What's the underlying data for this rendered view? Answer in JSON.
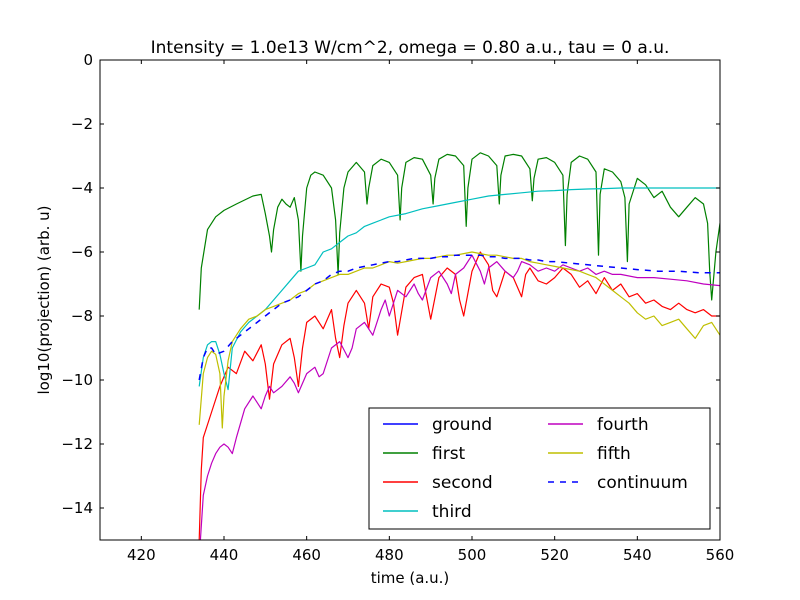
{
  "chart_data": {
    "type": "line",
    "title": "Intensity = 1.0e13 W/cm^2, omega = 0.80 a.u., tau = 0 a.u.",
    "xlabel": "time (a.u.)",
    "ylabel": "log10(projection) (arb. u)",
    "xlim": [
      410,
      560
    ],
    "ylim": [
      -15,
      0
    ],
    "xticks": [
      420,
      440,
      460,
      480,
      500,
      520,
      540,
      560
    ],
    "yticks": [
      0,
      -2,
      -4,
      -6,
      -8,
      -10,
      -12,
      -14
    ],
    "xtick_labels": [
      "420",
      "440",
      "460",
      "480",
      "500",
      "520",
      "540",
      "560"
    ],
    "ytick_labels": [
      "0",
      "−2",
      "−4",
      "−6",
      "−8",
      "−10",
      "−12",
      "−14"
    ],
    "grid": false,
    "legend_position": "lower-right",
    "series": [
      {
        "name": "ground",
        "color": "#0000ff",
        "dash": "solid",
        "x": [],
        "y": []
      },
      {
        "name": "first",
        "color": "#008000",
        "dash": "solid",
        "x": [
          434,
          434.5,
          436,
          438,
          440,
          443,
          447,
          449,
          450,
          451,
          451.5,
          452,
          453,
          454,
          455,
          456,
          457,
          458,
          458.6,
          459,
          460,
          461,
          462,
          464,
          466,
          467,
          467.6,
          468,
          469,
          470,
          472,
          474,
          474.6,
          475,
          476,
          478,
          480,
          482,
          482.6,
          483,
          484,
          486,
          488,
          490,
          490.6,
          491,
          492,
          494,
          496,
          498,
          498.6,
          499,
          500,
          502,
          504,
          506,
          506.6,
          507,
          508,
          510,
          512,
          514,
          514.6,
          515,
          516,
          518,
          520,
          522,
          522.6,
          523,
          524,
          526,
          528,
          530,
          530.6,
          531,
          532,
          534,
          536,
          537,
          537.6,
          538,
          540,
          542,
          544,
          546,
          548,
          550,
          552,
          554,
          556,
          557,
          557.5,
          558,
          559,
          560
        ],
        "y": [
          -7.8,
          -6.5,
          -5.3,
          -4.9,
          -4.7,
          -4.5,
          -4.25,
          -4.2,
          -4.8,
          -5.5,
          -6.0,
          -5.3,
          -4.6,
          -4.35,
          -4.5,
          -4.6,
          -4.3,
          -5.0,
          -6.6,
          -5.5,
          -4.0,
          -3.6,
          -3.5,
          -3.6,
          -4.0,
          -5.0,
          -6.7,
          -5.4,
          -4.0,
          -3.5,
          -3.2,
          -3.5,
          -4.5,
          -4.0,
          -3.3,
          -3.1,
          -3.2,
          -3.6,
          -5.0,
          -4.0,
          -3.2,
          -3.05,
          -3.1,
          -3.6,
          -4.5,
          -3.7,
          -3.1,
          -2.95,
          -3.0,
          -3.3,
          -5.2,
          -4.0,
          -3.1,
          -2.9,
          -3.0,
          -3.3,
          -4.5,
          -3.6,
          -3.0,
          -2.95,
          -3.0,
          -3.4,
          -4.4,
          -3.7,
          -3.1,
          -3.05,
          -3.2,
          -3.6,
          -5.8,
          -4.2,
          -3.2,
          -3.0,
          -3.1,
          -3.5,
          -6.1,
          -4.2,
          -3.4,
          -3.5,
          -3.8,
          -4.3,
          -6.3,
          -4.5,
          -3.7,
          -3.9,
          -4.3,
          -4.1,
          -4.6,
          -4.9,
          -4.6,
          -4.3,
          -4.5,
          -5.1,
          -6.6,
          -7.5,
          -6.0,
          -5.1
        ]
      },
      {
        "name": "second",
        "color": "#ff0000",
        "dash": "solid",
        "x": [
          434,
          434.5,
          435,
          437,
          439,
          441,
          443,
          445,
          447,
          449,
          450,
          451,
          452,
          454,
          456,
          457,
          458,
          459,
          460,
          462,
          464,
          466,
          467,
          468,
          469,
          470,
          472,
          474,
          475,
          476,
          478,
          480,
          481,
          482,
          484,
          486,
          488,
          489,
          490,
          492,
          494,
          496,
          497,
          498,
          500,
          502,
          504,
          505,
          506,
          508,
          510,
          512,
          513,
          514,
          516,
          518,
          520,
          522,
          524,
          526,
          528,
          530,
          532,
          534,
          536,
          538,
          540,
          542,
          544,
          546,
          548,
          550,
          552,
          554,
          556,
          558,
          560
        ],
        "y": [
          -15,
          -12.8,
          -11.8,
          -11.0,
          -10.2,
          -9.6,
          -9.8,
          -9.1,
          -9.4,
          -8.9,
          -9.5,
          -10.6,
          -9.5,
          -8.9,
          -8.7,
          -9.3,
          -10.2,
          -9.0,
          -8.2,
          -8.0,
          -8.4,
          -7.8,
          -8.7,
          -9.3,
          -8.3,
          -7.6,
          -7.2,
          -7.6,
          -8.4,
          -7.4,
          -7.0,
          -7.1,
          -7.6,
          -8.6,
          -7.1,
          -6.8,
          -6.7,
          -7.4,
          -8.1,
          -6.8,
          -6.5,
          -6.7,
          -7.5,
          -8.0,
          -6.6,
          -6.0,
          -6.4,
          -7.2,
          -7.4,
          -6.6,
          -6.8,
          -7.4,
          -6.7,
          -6.5,
          -6.9,
          -7.0,
          -6.8,
          -6.5,
          -6.7,
          -7.1,
          -6.9,
          -7.3,
          -6.8,
          -7.2,
          -7.0,
          -7.4,
          -7.3,
          -7.6,
          -7.5,
          -7.7,
          -7.8,
          -7.6,
          -7.8,
          -7.9,
          -7.8,
          -8.0,
          -8.0
        ]
      },
      {
        "name": "third",
        "color": "#00bfbf",
        "dash": "solid",
        "x": [
          434,
          435,
          436,
          437,
          438,
          439,
          440,
          441,
          442,
          444,
          446,
          448,
          450,
          452,
          454,
          456,
          458,
          460,
          462,
          464,
          466,
          468,
          470,
          472,
          474,
          476,
          478,
          480,
          484,
          488,
          492,
          496,
          500,
          504,
          508,
          512,
          516,
          520,
          524,
          528,
          532,
          536,
          540,
          545,
          550,
          555,
          560
        ],
        "y": [
          -10.2,
          -9.3,
          -8.9,
          -8.8,
          -8.8,
          -9.2,
          -9.8,
          -10.3,
          -9.0,
          -8.5,
          -8.2,
          -8.0,
          -7.8,
          -7.5,
          -7.2,
          -6.9,
          -6.6,
          -6.5,
          -6.4,
          -6.0,
          -5.9,
          -5.7,
          -5.5,
          -5.4,
          -5.2,
          -5.1,
          -5.0,
          -4.9,
          -4.8,
          -4.65,
          -4.55,
          -4.45,
          -4.35,
          -4.25,
          -4.2,
          -4.15,
          -4.1,
          -4.08,
          -4.05,
          -4.03,
          -4.02,
          -4.0,
          -4.0,
          -4.0,
          -4.0,
          -4.0,
          -4.0
        ]
      },
      {
        "name": "fourth",
        "color": "#bf00bf",
        "dash": "solid",
        "x": [
          434.3,
          435,
          436,
          437,
          438,
          439,
          440,
          441,
          442,
          443,
          445,
          447,
          448,
          449,
          450,
          451,
          452,
          454,
          456,
          457,
          458,
          460,
          462,
          463,
          464,
          466,
          468,
          470,
          471,
          472,
          474,
          476,
          478,
          479,
          480,
          482,
          484,
          486,
          487,
          488,
          490,
          492,
          494,
          495,
          496,
          498,
          500,
          502,
          503,
          504,
          506,
          508,
          510,
          511,
          512,
          514,
          516,
          518,
          520,
          522,
          524,
          526,
          528,
          530,
          532,
          534,
          536,
          540,
          544,
          548,
          552,
          556,
          560
        ],
        "y": [
          -15,
          -13.6,
          -13.0,
          -12.6,
          -12.3,
          -12.1,
          -12.0,
          -12.1,
          -12.3,
          -11.8,
          -10.9,
          -10.5,
          -10.7,
          -10.9,
          -10.5,
          -10.2,
          -10.4,
          -10.2,
          -9.9,
          -10.1,
          -10.4,
          -9.8,
          -9.6,
          -9.9,
          -9.8,
          -9.0,
          -8.8,
          -9.3,
          -9.0,
          -8.4,
          -8.2,
          -8.6,
          -7.8,
          -7.5,
          -8.0,
          -7.2,
          -7.4,
          -7.0,
          -7.3,
          -7.5,
          -6.8,
          -6.6,
          -7.0,
          -7.3,
          -6.7,
          -6.5,
          -6.1,
          -6.6,
          -7.0,
          -6.5,
          -6.3,
          -6.6,
          -6.8,
          -6.6,
          -6.3,
          -6.4,
          -6.6,
          -6.5,
          -6.6,
          -6.4,
          -6.5,
          -6.6,
          -6.5,
          -6.7,
          -6.6,
          -6.7,
          -6.7,
          -6.8,
          -6.8,
          -6.85,
          -6.9,
          -7.0,
          -7.05
        ]
      },
      {
        "name": "fifth",
        "color": "#bfbf00",
        "dash": "solid",
        "x": [
          434,
          435,
          436,
          437,
          438,
          439,
          439.6,
          440,
          441,
          442,
          444,
          446,
          448,
          450,
          452,
          454,
          456,
          458,
          460,
          462,
          464,
          466,
          468,
          470,
          472,
          474,
          476,
          478,
          480,
          482,
          484,
          486,
          488,
          490,
          492,
          494,
          496,
          498,
          500,
          502,
          504,
          506,
          508,
          510,
          512,
          514,
          516,
          518,
          520,
          522,
          524,
          526,
          528,
          530,
          532,
          534,
          536,
          538,
          540,
          542,
          544,
          546,
          548,
          550,
          552,
          554,
          556,
          558,
          560
        ],
        "y": [
          -11.4,
          -9.8,
          -9.3,
          -9.1,
          -9.2,
          -9.8,
          -11.5,
          -10.5,
          -9.4,
          -8.8,
          -8.4,
          -8.1,
          -8.0,
          -7.8,
          -7.7,
          -7.6,
          -7.5,
          -7.3,
          -7.2,
          -7.0,
          -6.9,
          -6.8,
          -6.7,
          -6.7,
          -6.6,
          -6.5,
          -6.5,
          -6.4,
          -6.3,
          -6.35,
          -6.3,
          -6.25,
          -6.2,
          -6.2,
          -6.15,
          -6.1,
          -6.1,
          -6.05,
          -6.0,
          -6.05,
          -6.1,
          -6.1,
          -6.15,
          -6.2,
          -6.2,
          -6.3,
          -6.35,
          -6.4,
          -6.45,
          -6.5,
          -6.55,
          -6.6,
          -6.7,
          -6.8,
          -7.0,
          -7.2,
          -7.4,
          -7.6,
          -7.9,
          -8.1,
          -8.0,
          -8.3,
          -8.2,
          -8.1,
          -8.4,
          -8.7,
          -8.3,
          -8.2,
          -8.6
        ]
      },
      {
        "name": "continuum",
        "color": "#0000ff",
        "dash": "dashed",
        "x": [
          434,
          435,
          436,
          437,
          438,
          440,
          442,
          444,
          446,
          448,
          450,
          452,
          454,
          456,
          458,
          460,
          462,
          464,
          466,
          468,
          470,
          472,
          474,
          476,
          478,
          480,
          482,
          484,
          486,
          488,
          490,
          492,
          494,
          496,
          498,
          500,
          502,
          504,
          506,
          508,
          510,
          512,
          514,
          516,
          518,
          520,
          524,
          528,
          532,
          536,
          540,
          545,
          550,
          555,
          560
        ],
        "y": [
          -10.0,
          -9.3,
          -9.0,
          -9.0,
          -9.2,
          -9.1,
          -8.8,
          -8.6,
          -8.4,
          -8.2,
          -8.0,
          -7.8,
          -7.6,
          -7.5,
          -7.4,
          -7.2,
          -7.0,
          -6.9,
          -6.7,
          -6.6,
          -6.6,
          -6.5,
          -6.45,
          -6.4,
          -6.35,
          -6.3,
          -6.3,
          -6.25,
          -6.2,
          -6.2,
          -6.2,
          -6.15,
          -6.15,
          -6.1,
          -6.1,
          -6.1,
          -6.1,
          -6.15,
          -6.15,
          -6.2,
          -6.2,
          -6.2,
          -6.25,
          -6.25,
          -6.3,
          -6.3,
          -6.35,
          -6.4,
          -6.45,
          -6.5,
          -6.55,
          -6.6,
          -6.6,
          -6.65,
          -6.65
        ]
      }
    ]
  }
}
